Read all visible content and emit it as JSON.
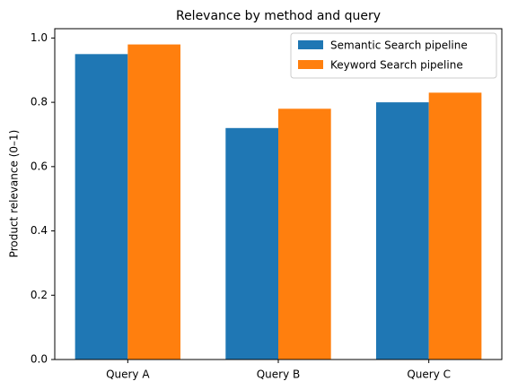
{
  "chart_data": {
    "type": "bar",
    "title": "Relevance by method and query",
    "y_label": "Product relevance (0–1)",
    "categories": [
      "Query A",
      "Query B",
      "Query C"
    ],
    "series": [
      {
        "name": "Semantic Search pipeline",
        "color": "#1f77b4",
        "values": [
          0.95,
          0.72,
          0.8
        ]
      },
      {
        "name": "Keyword Search pipeline",
        "color": "#ff7f0e",
        "values": [
          0.98,
          0.78,
          0.83
        ]
      }
    ],
    "ylim": [
      0,
      1.029
    ],
    "yticks": [
      {
        "value": 0,
        "label": "0.0"
      },
      0.2,
      0.4,
      0.6,
      0.8,
      {
        "value": 1,
        "label": "1.0"
      }
    ],
    "grid": false,
    "legend": "upper right"
  }
}
